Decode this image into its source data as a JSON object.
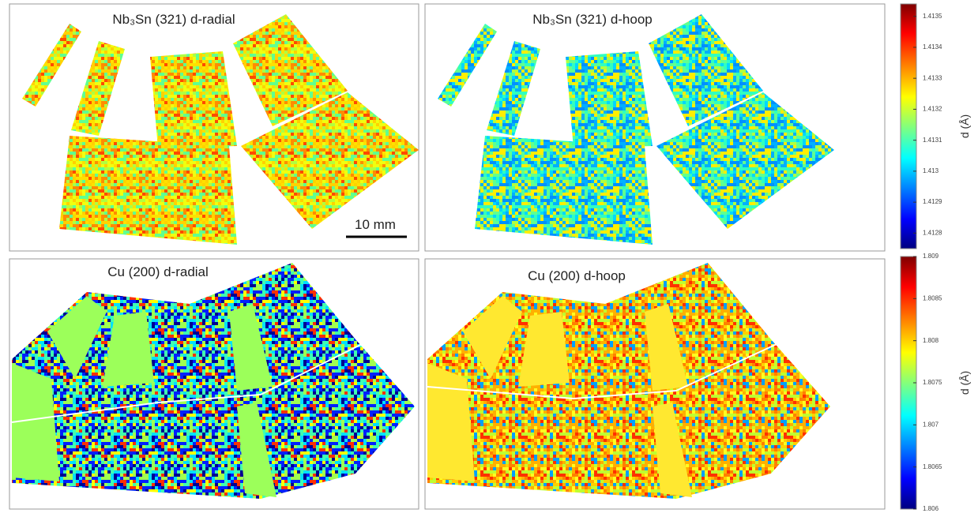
{
  "panels": [
    {
      "title": "Nb₃Sn (321) d-radial"
    },
    {
      "title": "Nb₃Sn (321) d-hoop"
    },
    {
      "title": "Cu (200) d-radial"
    },
    {
      "title": "Cu (200) d-hoop"
    }
  ],
  "scale_bar": "10 mm",
  "colorbars": [
    {
      "label": "d (Å)",
      "lim": [
        1.41275,
        1.41354
      ],
      "ticks": [
        1.4128,
        1.4129,
        1.413,
        1.4131,
        1.4132,
        1.4133,
        1.4134,
        1.4135
      ]
    },
    {
      "label": "d (Å)",
      "lim": [
        1.806,
        1.809
      ],
      "ticks": [
        1.806,
        1.8065,
        1.807,
        1.8075,
        1.808,
        1.8085,
        1.809
      ]
    }
  ]
}
